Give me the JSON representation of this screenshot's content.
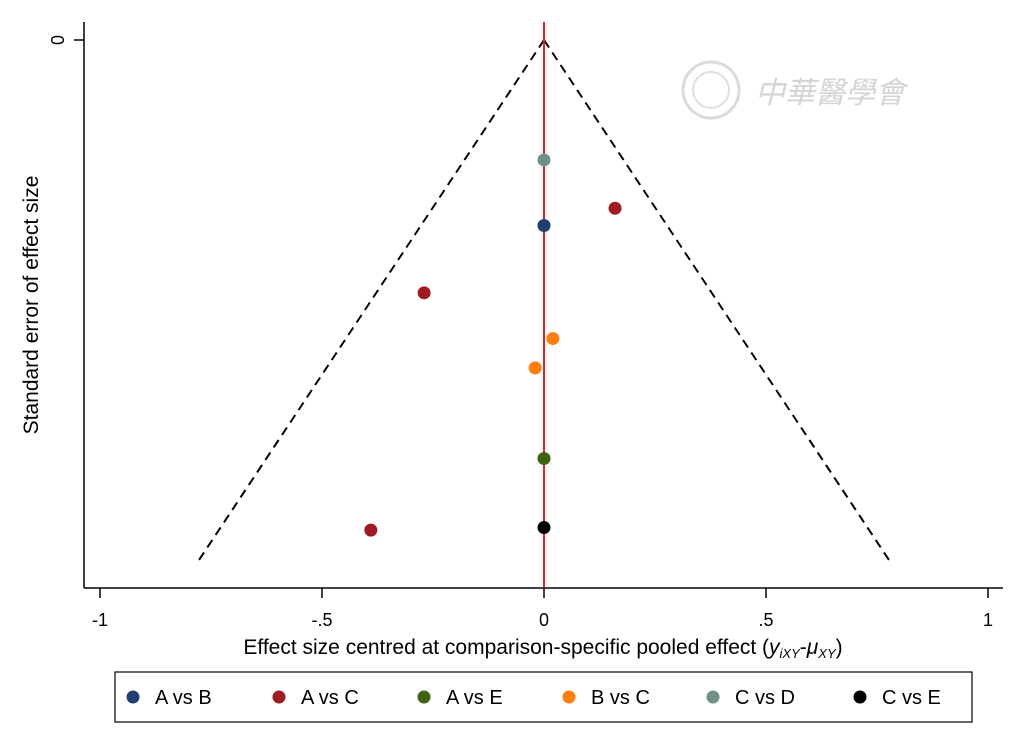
{
  "chart_data": {
    "type": "scatter",
    "title": "",
    "xlabel": "Effect size centred at comparison-specific pooled effect (",
    "xlabel_math": "y",
    "xlabel_sub1": "iXY",
    "xlabel_dash": "-",
    "xlabel_mu": "μ",
    "xlabel_sub2": "XY",
    "xlabel_close": ")",
    "ylabel": "Standard error of effect size",
    "xlim": [
      -1,
      1
    ],
    "xticks": [
      -1,
      -0.5,
      0,
      0.5,
      1
    ],
    "xtick_labels": [
      "-1",
      "-.5",
      "0",
      ".5",
      "1"
    ],
    "yticks": [
      0
    ],
    "ytick_labels": [
      "0"
    ],
    "ylim_top": 0,
    "ylim_bottom": 0.62,
    "y_reversed": true,
    "grid": false,
    "reference_line": {
      "x": 0,
      "color": "#e8211d"
    },
    "funnel": {
      "apex": [
        0,
        0
      ],
      "left_end": [
        -0.78,
        0.605
      ],
      "right_end": [
        0.78,
        0.605
      ]
    },
    "legend_position": "bottom",
    "series": [
      {
        "name": "A vs B",
        "color": "#1f3f73",
        "points": [
          [
            0.0,
            0.215
          ]
        ]
      },
      {
        "name": "A vs C",
        "color": "#9e1b24",
        "points": [
          [
            0.16,
            0.195
          ],
          [
            -0.27,
            0.293
          ],
          [
            -0.39,
            0.568
          ]
        ]
      },
      {
        "name": "A vs E",
        "color": "#3c6411",
        "points": [
          [
            0.0,
            0.485
          ]
        ]
      },
      {
        "name": "B vs C",
        "color": "#ff7f0e",
        "points": [
          [
            0.02,
            0.346
          ],
          [
            -0.02,
            0.38
          ]
        ]
      },
      {
        "name": "C vs D",
        "color": "#6e9288",
        "points": [
          [
            0.0,
            0.139
          ]
        ]
      },
      {
        "name": "C vs E",
        "color": "#000000",
        "points": [
          [
            0.0,
            0.565
          ]
        ]
      }
    ]
  },
  "watermark": {
    "text": "中華醫學會"
  }
}
